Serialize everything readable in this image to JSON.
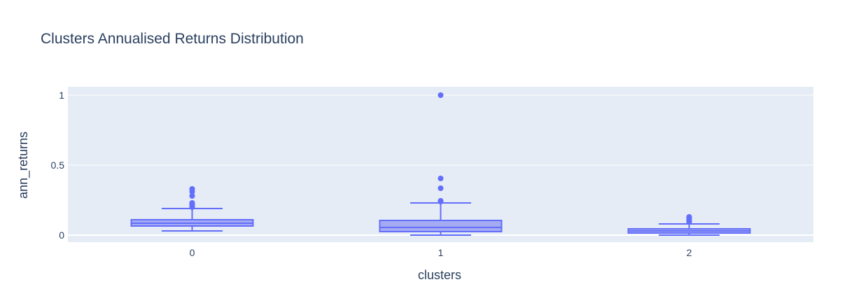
{
  "chart_data": {
    "type": "box",
    "title": "Clusters Annualised Returns Distribution",
    "xlabel": "clusters",
    "ylabel": "ann_returns",
    "categories": [
      "0",
      "1",
      "2"
    ],
    "ylim": [
      -0.05,
      1.06
    ],
    "yticks": [
      0,
      0.5,
      1
    ],
    "ytick_labels": [
      "0",
      "0.5",
      "1"
    ],
    "grid": true,
    "colors": {
      "plot_bg": "#e5ecf6",
      "grid": "#ffffff",
      "box_line": "#636efa",
      "box_fill": "#a5abf3",
      "text": "#2a3f5f"
    },
    "boxes": [
      {
        "category": "0",
        "lower_fence": 0.03,
        "q1": 0.065,
        "median": 0.085,
        "q3": 0.11,
        "upper_fence": 0.19,
        "outliers": [
          0.2,
          0.21,
          0.22,
          0.23,
          0.28,
          0.31,
          0.33
        ]
      },
      {
        "category": "1",
        "lower_fence": 0.0,
        "q1": 0.025,
        "median": 0.055,
        "q3": 0.105,
        "upper_fence": 0.23,
        "outliers": [
          0.24,
          0.245,
          0.335,
          0.405,
          1.0
        ]
      },
      {
        "category": "2",
        "lower_fence": 0.0,
        "q1": 0.015,
        "median": 0.03,
        "q3": 0.045,
        "upper_fence": 0.08,
        "outliers": [
          0.095,
          0.105,
          0.115,
          0.125,
          0.13
        ]
      }
    ]
  }
}
